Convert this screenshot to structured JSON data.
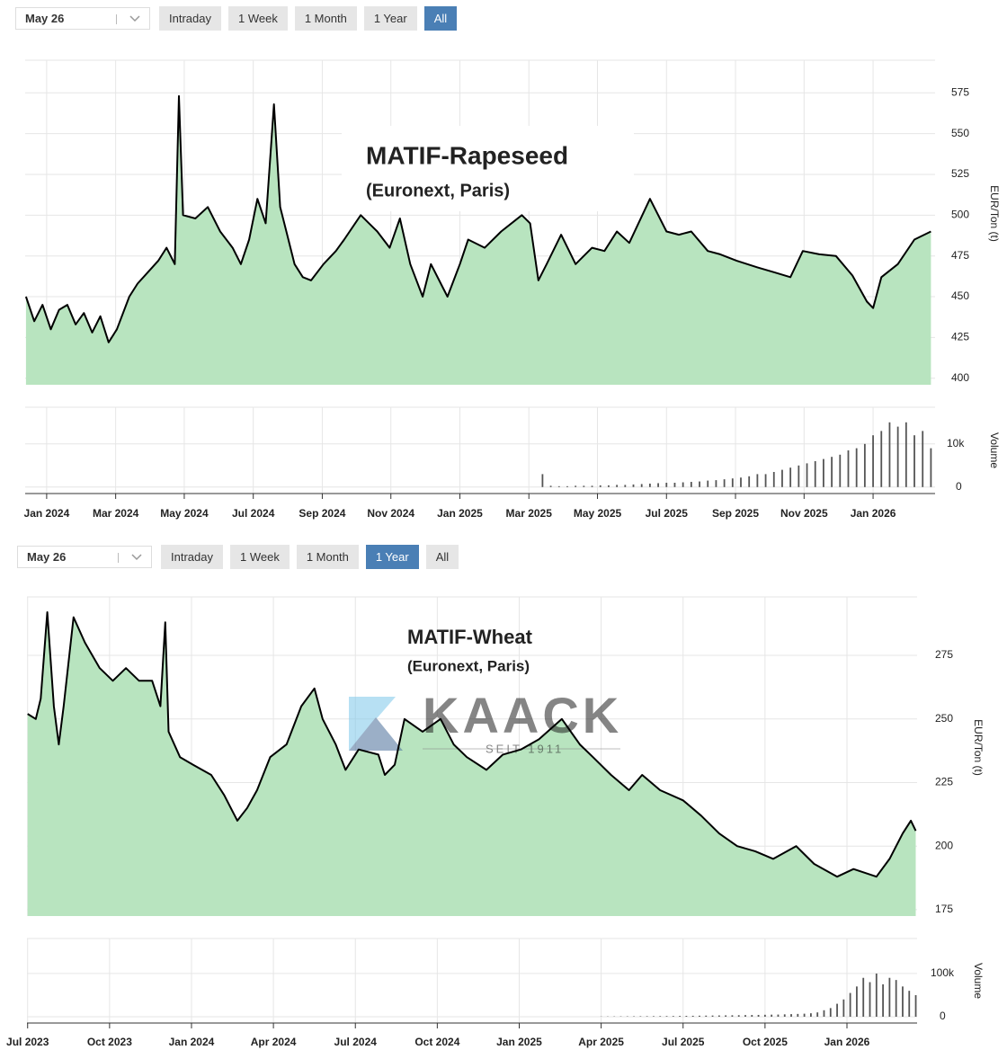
{
  "toolbars": [
    {
      "select": "May 26",
      "buttons": [
        "Intraday",
        "1 Week",
        "1 Month",
        "1 Year",
        "All"
      ],
      "active": 4
    },
    {
      "select": "May 26",
      "buttons": [
        "Intraday",
        "1 Week",
        "1 Month",
        "1 Year",
        "All"
      ],
      "active": 3
    }
  ],
  "chart_data": [
    {
      "type": "area",
      "title": "MATIF-Rapeseed",
      "subtitle": "(Euronext, Paris)",
      "y_label": "EUR/Ton (t)",
      "color": "#b8e4bf",
      "line_color": "#000000",
      "grid": true,
      "xlim": [
        2023.948,
        2026.15
      ],
      "ylim": [
        396,
        595
      ],
      "xticks": [
        {
          "value": 2024.0,
          "label": "Jan 2024"
        },
        {
          "value": 2024.167,
          "label": "Mar 2024"
        },
        {
          "value": 2024.333,
          "label": "May 2024"
        },
        {
          "value": 2024.5,
          "label": "Jul 2024"
        },
        {
          "value": 2024.667,
          "label": "Sep 2024"
        },
        {
          "value": 2024.833,
          "label": "Nov 2024"
        },
        {
          "value": 2025.0,
          "label": "Jan 2025"
        },
        {
          "value": 2025.167,
          "label": "Mar 2025"
        },
        {
          "value": 2025.333,
          "label": "May 2025"
        },
        {
          "value": 2025.5,
          "label": "Jul 2025"
        },
        {
          "value": 2025.667,
          "label": "Sep 2025"
        },
        {
          "value": 2025.833,
          "label": "Nov 2025"
        },
        {
          "value": 2026.0,
          "label": "Jan 2026"
        }
      ],
      "yticks": [
        400,
        425,
        450,
        475,
        500,
        525,
        550,
        575
      ],
      "x": [
        2023.95,
        2023.97,
        2023.99,
        2024.01,
        2024.03,
        2024.05,
        2024.07,
        2024.09,
        2024.11,
        2024.13,
        2024.15,
        2024.17,
        2024.2,
        2024.22,
        2024.245,
        2024.27,
        2024.29,
        2024.31,
        2024.32,
        2024.33,
        2024.36,
        2024.39,
        2024.42,
        2024.45,
        2024.47,
        2024.49,
        2024.51,
        2024.53,
        2024.55,
        2024.565,
        2024.58,
        2024.6,
        2024.62,
        2024.64,
        2024.67,
        2024.7,
        2024.72,
        2024.76,
        2024.78,
        2024.8,
        2024.83,
        2024.855,
        2024.88,
        2024.91,
        2024.93,
        2024.96,
        2024.97,
        2025.0,
        2025.02,
        2025.06,
        2025.1,
        2025.15,
        2025.17,
        2025.19,
        2025.21,
        2025.245,
        2025.28,
        2025.32,
        2025.35,
        2025.38,
        2025.41,
        2025.46,
        2025.5,
        2025.53,
        2025.56,
        2025.6,
        2025.63,
        2025.67,
        2025.72,
        2025.76,
        2025.8,
        2025.83,
        2025.87,
        2025.91,
        2025.95,
        2025.985,
        2026.0,
        2026.02,
        2026.06,
        2026.1,
        2026.14
      ],
      "values": [
        450,
        435,
        445,
        430,
        442,
        445,
        433,
        440,
        428,
        438,
        422,
        430,
        450,
        458,
        465,
        472,
        480,
        470,
        573,
        500,
        498,
        505,
        490,
        480,
        470,
        485,
        510,
        495,
        568,
        505,
        490,
        470,
        462,
        460,
        470,
        478,
        485,
        500,
        495,
        490,
        480,
        498,
        470,
        450,
        470,
        455,
        450,
        470,
        485,
        480,
        490,
        500,
        495,
        460,
        470,
        488,
        470,
        480,
        478,
        490,
        483,
        510,
        490,
        488,
        490,
        478,
        476,
        472,
        468,
        465,
        462,
        478,
        476,
        475,
        463,
        447,
        443,
        462,
        470,
        485,
        490
      ],
      "volume": {
        "label": "Volume",
        "color": "#555555",
        "ylim": [
          -1500,
          18500
        ],
        "yticks": [
          0,
          {
            "value": 10000,
            "label": "10k"
          }
        ],
        "x": [
          2025.2,
          2025.22,
          2025.24,
          2025.26,
          2025.28,
          2025.3,
          2025.32,
          2025.34,
          2025.36,
          2025.38,
          2025.4,
          2025.42,
          2025.44,
          2025.46,
          2025.48,
          2025.5,
          2025.52,
          2025.54,
          2025.56,
          2025.58,
          2025.6,
          2025.62,
          2025.64,
          2025.66,
          2025.68,
          2025.7,
          2025.72,
          2025.74,
          2025.76,
          2025.78,
          2025.8,
          2025.82,
          2025.84,
          2025.86,
          2025.88,
          2025.9,
          2025.92,
          2025.94,
          2025.96,
          2025.98,
          2026.0,
          2026.02,
          2026.04,
          2026.06,
          2026.08,
          2026.1,
          2026.12,
          2026.14
        ],
        "values": [
          3000,
          300,
          200,
          200,
          300,
          300,
          300,
          400,
          400,
          500,
          500,
          600,
          700,
          800,
          900,
          1000,
          1000,
          1100,
          1200,
          1300,
          1500,
          1600,
          1800,
          2000,
          2200,
          2500,
          3000,
          3000,
          3500,
          4000,
          4500,
          5000,
          5500,
          6000,
          6500,
          7000,
          7500,
          8500,
          9000,
          10000,
          12000,
          13000,
          15000,
          14000,
          15000,
          12000,
          13000,
          9000
        ]
      }
    },
    {
      "type": "area",
      "title": "MATIF-Wheat",
      "subtitle": "(Euronext, Paris)",
      "y_label": "EUR/Ton (t)",
      "watermark": "KAACK",
      "watermark_sub": "SEIT 1911",
      "color": "#b8e4bf",
      "line_color": "#000000",
      "grid": true,
      "xlim": [
        2023.498,
        2026.214
      ],
      "ylim": [
        172.5,
        298
      ],
      "xticks": [
        {
          "value": 2023.5,
          "label": "Jul 2023"
        },
        {
          "value": 2023.75,
          "label": "Oct 2023"
        },
        {
          "value": 2024.0,
          "label": "Jan 2024"
        },
        {
          "value": 2024.25,
          "label": "Apr 2024"
        },
        {
          "value": 2024.5,
          "label": "Jul 2024"
        },
        {
          "value": 2024.75,
          "label": "Oct 2024"
        },
        {
          "value": 2025.0,
          "label": "Jan 2025"
        },
        {
          "value": 2025.25,
          "label": "Apr 2025"
        },
        {
          "value": 2025.5,
          "label": "Jul 2025"
        },
        {
          "value": 2025.75,
          "label": "Oct 2025"
        },
        {
          "value": 2026.0,
          "label": "Jan 2026"
        }
      ],
      "yticks": [
        175,
        200,
        225,
        250,
        275
      ],
      "x": [
        2023.5,
        2023.525,
        2023.54,
        2023.56,
        2023.58,
        2023.595,
        2023.61,
        2023.64,
        2023.675,
        2023.72,
        2023.76,
        2023.8,
        2023.84,
        2023.88,
        2023.905,
        2023.92,
        2023.93,
        2023.965,
        2024.005,
        2024.06,
        2024.1,
        2024.14,
        2024.17,
        2024.2,
        2024.24,
        2024.29,
        2024.335,
        2024.375,
        2024.4,
        2024.44,
        2024.47,
        2024.51,
        2024.57,
        2024.59,
        2024.62,
        2024.65,
        2024.705,
        2024.76,
        2024.8,
        2024.84,
        2024.9,
        2024.95,
        2025.005,
        2025.06,
        2025.13,
        2025.185,
        2025.225,
        2025.28,
        2025.335,
        2025.375,
        2025.43,
        2025.5,
        2025.555,
        2025.61,
        2025.665,
        2025.72,
        2025.775,
        2025.845,
        2025.9,
        2025.97,
        2026.02,
        2026.09,
        2026.13,
        2026.17,
        2026.195,
        2026.21
      ],
      "values": [
        252,
        250,
        258,
        292,
        255,
        240,
        255,
        290,
        280,
        270,
        265,
        270,
        265,
        265,
        255,
        288,
        245,
        235,
        232,
        228,
        220,
        210,
        215,
        222,
        235,
        240,
        255,
        262,
        250,
        240,
        230,
        238,
        236,
        228,
        232,
        250,
        245,
        250,
        240,
        235,
        230,
        236,
        238,
        242,
        250,
        240,
        235,
        228,
        222,
        228,
        222,
        218,
        212,
        205,
        200,
        198,
        195,
        200,
        193,
        188,
        191,
        188,
        195,
        205,
        210,
        206
      ],
      "volume": {
        "label": "Volume",
        "color": "#555555",
        "ylim": [
          -14600,
          181000
        ],
        "yticks": [
          0,
          {
            "value": 100000,
            "label": "100k"
          }
        ],
        "x": [
          2025.25,
          2025.27,
          2025.29,
          2025.31,
          2025.33,
          2025.35,
          2025.37,
          2025.39,
          2025.41,
          2025.43,
          2025.45,
          2025.47,
          2025.49,
          2025.51,
          2025.53,
          2025.55,
          2025.57,
          2025.59,
          2025.61,
          2025.63,
          2025.65,
          2025.67,
          2025.69,
          2025.71,
          2025.73,
          2025.75,
          2025.77,
          2025.79,
          2025.81,
          2025.83,
          2025.85,
          2025.87,
          2025.89,
          2025.91,
          2025.93,
          2025.95,
          2025.97,
          2025.99,
          2026.01,
          2026.03,
          2026.05,
          2026.07,
          2026.09,
          2026.11,
          2026.13,
          2026.15,
          2026.17,
          2026.19,
          2026.21
        ],
        "values": [
          500,
          600,
          700,
          800,
          900,
          1000,
          1100,
          1200,
          1300,
          1400,
          1500,
          1600,
          1800,
          2000,
          2200,
          2400,
          2600,
          2800,
          3000,
          3200,
          3400,
          3600,
          3800,
          4000,
          4200,
          4500,
          4800,
          5000,
          5500,
          6000,
          6500,
          7000,
          8000,
          10000,
          15000,
          20000,
          30000,
          40000,
          55000,
          70000,
          90000,
          80000,
          100000,
          75000,
          90000,
          85000,
          70000,
          60000,
          50000
        ]
      }
    }
  ]
}
